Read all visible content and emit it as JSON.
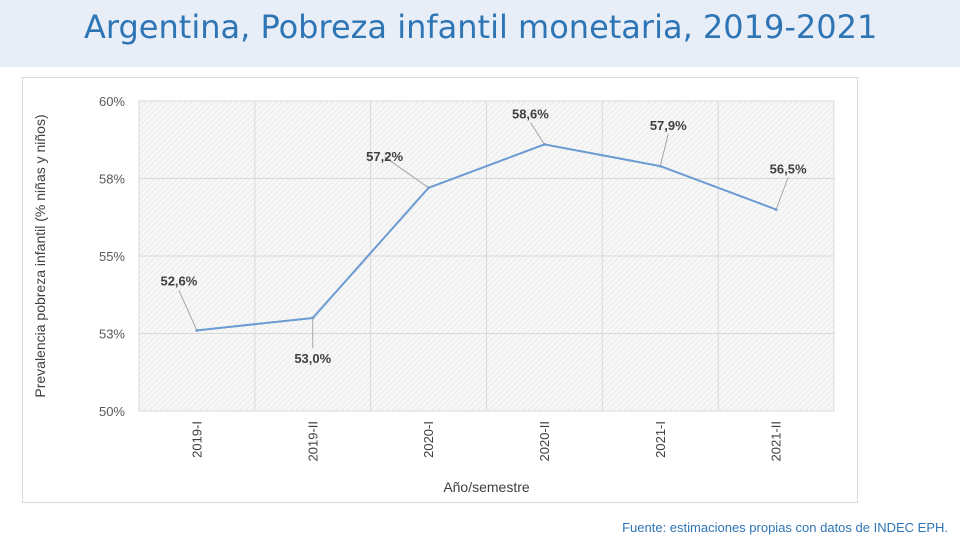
{
  "title": "Argentina, Pobreza infantil monetaria, 2019-2021",
  "source": "Fuente: estimaciones propias con datos de INDEC EPH.",
  "colors": {
    "accent": "#2e75b6",
    "line": "#6b9bd1",
    "title_bar": "#e8eef7"
  },
  "chart_data": {
    "type": "line",
    "categories": [
      "2019-I",
      "2019-II",
      "2020-I",
      "2020-II",
      "2021-I",
      "2021-II"
    ],
    "series": [
      {
        "values": [
          52.6,
          53.0,
          57.2,
          58.6,
          57.9,
          56.5
        ]
      }
    ],
    "data_labels": [
      "52,6%",
      "53,0%",
      "57,2%",
      "58,6%",
      "57,9%",
      "56,5%"
    ],
    "xlabel": "Año/semestre",
    "ylabel": "Prevalencia pobreza infantil (% niñas y niños)",
    "ylim": [
      50,
      60
    ],
    "yticks": [
      50,
      52.5,
      55,
      57.5,
      60
    ],
    "ytick_labels": [
      "50%",
      "53%",
      "55%",
      "58%",
      "60%"
    ],
    "grid": true,
    "legend": "none"
  }
}
